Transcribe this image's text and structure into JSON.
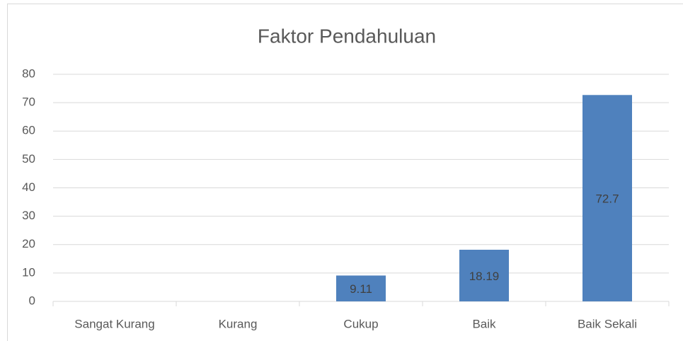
{
  "chart_data": {
    "type": "bar",
    "title": "Faktor Pendahuluan",
    "categories": [
      "Sangat Kurang",
      "Kurang",
      "Cukup",
      "Baik",
      "Baik Sekali"
    ],
    "values": [
      null,
      null,
      9.11,
      18.19,
      72.7
    ],
    "color": "#4f81bd",
    "ylim": [
      0,
      80
    ],
    "yticks": [
      0,
      10,
      20,
      30,
      40,
      50,
      60,
      70,
      80
    ],
    "grid": true
  }
}
